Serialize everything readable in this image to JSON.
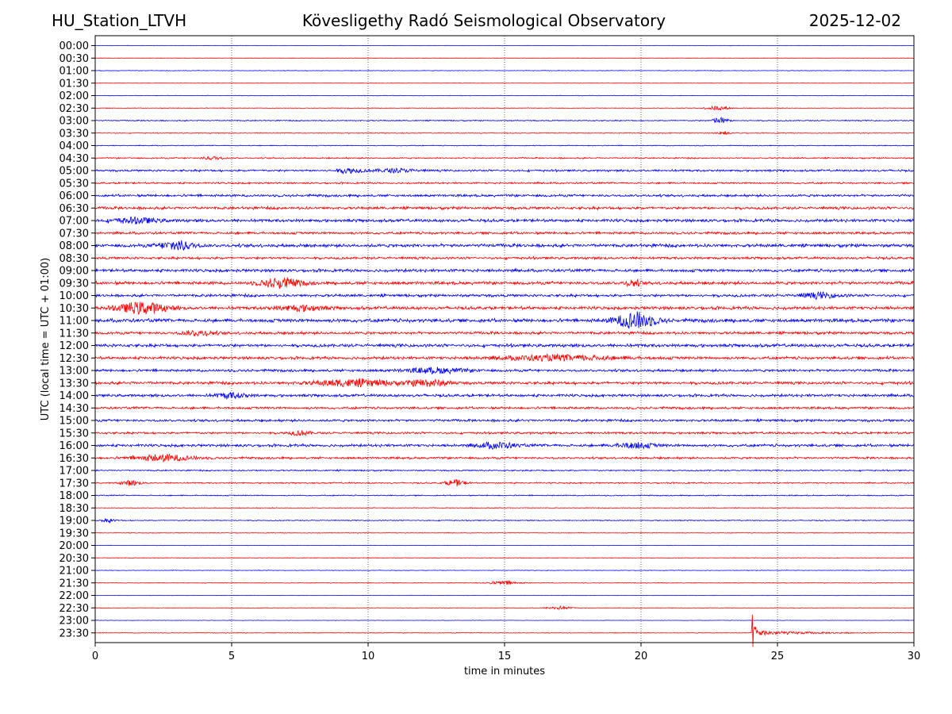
{
  "header": {
    "station": "HU_Station_LTVH",
    "observatory": "Kövesligethy Radó Seismological Observatory",
    "date": "2025-12-02"
  },
  "chart_data": {
    "type": "line",
    "title": "Kövesligethy Radó Seismological Observatory",
    "xlabel": "time in minutes",
    "ylabel": "UTC (local time = UTC + 01:00)",
    "xlim": [
      0,
      30
    ],
    "xticks": [
      "0",
      "5",
      "10",
      "15",
      "20",
      "25",
      "30"
    ],
    "grid": "vertical dotted",
    "series_colors": [
      "#0000ff",
      "#ff0000"
    ],
    "rows": [
      "00:00",
      "00:30",
      "01:00",
      "01:30",
      "02:00",
      "02:30",
      "03:00",
      "03:30",
      "04:00",
      "04:30",
      "05:00",
      "05:30",
      "06:00",
      "06:30",
      "07:00",
      "07:30",
      "08:00",
      "08:30",
      "09:00",
      "09:30",
      "10:00",
      "10:30",
      "11:00",
      "11:30",
      "12:00",
      "12:30",
      "13:00",
      "13:30",
      "14:00",
      "14:30",
      "15:00",
      "15:30",
      "16:00",
      "16:30",
      "17:00",
      "17:30",
      "18:00",
      "18:30",
      "19:00",
      "19:30",
      "20:00",
      "20:30",
      "21:00",
      "21:30",
      "22:00",
      "22:30",
      "23:00",
      "23:30"
    ],
    "noise_level": [
      0.3,
      0.3,
      0.4,
      0.3,
      0.4,
      0.5,
      0.8,
      0.6,
      0.6,
      1.0,
      1.5,
      1.3,
      1.8,
      2.0,
      2.2,
      1.8,
      2.4,
      1.8,
      2.2,
      2.3,
      2.0,
      2.3,
      2.6,
      2.0,
      2.3,
      2.1,
      1.9,
      2.1,
      2.0,
      1.7,
      1.8,
      1.6,
      2.0,
      1.6,
      1.0,
      1.0,
      0.8,
      0.6,
      0.7,
      0.5,
      0.3,
      0.5,
      0.4,
      0.5,
      0.3,
      0.4,
      0.3,
      0.5
    ],
    "events": [
      {
        "row": "02:30",
        "minute": 22.8,
        "amp": 2.5,
        "width": 0.6
      },
      {
        "row": "03:00",
        "minute": 22.9,
        "amp": 4,
        "width": 0.4
      },
      {
        "row": "03:30",
        "minute": 23.0,
        "amp": 2,
        "width": 0.3
      },
      {
        "row": "04:30",
        "minute": 4.3,
        "amp": 2,
        "width": 0.5
      },
      {
        "row": "05:00",
        "minute": 9.3,
        "amp": 3,
        "width": 0.6
      },
      {
        "row": "05:00",
        "minute": 11.0,
        "amp": 2,
        "width": 1.2
      },
      {
        "row": "07:00",
        "minute": 1.5,
        "amp": 3,
        "width": 1.2
      },
      {
        "row": "08:00",
        "minute": 3.0,
        "amp": 6,
        "width": 0.8
      },
      {
        "row": "09:30",
        "minute": 6.8,
        "amp": 6,
        "width": 1.0
      },
      {
        "row": "09:30",
        "minute": 19.7,
        "amp": 4,
        "width": 0.4
      },
      {
        "row": "10:00",
        "minute": 26.5,
        "amp": 3,
        "width": 1.0
      },
      {
        "row": "10:30",
        "minute": 1.7,
        "amp": 7,
        "width": 1.2
      },
      {
        "row": "10:30",
        "minute": 7.5,
        "amp": 3,
        "width": 1.2
      },
      {
        "row": "11:00",
        "minute": 19.8,
        "amp": 10,
        "width": 1.0
      },
      {
        "row": "11:30",
        "minute": 3.8,
        "amp": 3,
        "width": 0.8
      },
      {
        "row": "12:30",
        "minute": 17.0,
        "amp": 3,
        "width": 3.0
      },
      {
        "row": "13:00",
        "minute": 12.5,
        "amp": 3,
        "width": 1.5
      },
      {
        "row": "13:30",
        "minute": 9.5,
        "amp": 4,
        "width": 2.0
      },
      {
        "row": "13:30",
        "minute": 12.2,
        "amp": 4,
        "width": 1.0
      },
      {
        "row": "14:00",
        "minute": 5.0,
        "amp": 3,
        "width": 0.8
      },
      {
        "row": "15:30",
        "minute": 7.5,
        "amp": 2.5,
        "width": 0.6
      },
      {
        "row": "16:00",
        "minute": 14.7,
        "amp": 3.5,
        "width": 1.0
      },
      {
        "row": "16:00",
        "minute": 19.8,
        "amp": 3,
        "width": 1.0
      },
      {
        "row": "16:30",
        "minute": 2.5,
        "amp": 4,
        "width": 1.5
      },
      {
        "row": "17:30",
        "minute": 1.3,
        "amp": 3,
        "width": 0.5
      },
      {
        "row": "17:30",
        "minute": 13.2,
        "amp": 4,
        "width": 0.5
      },
      {
        "row": "19:00",
        "minute": 0.5,
        "amp": 2,
        "width": 0.4
      },
      {
        "row": "21:30",
        "minute": 15.0,
        "amp": 2.5,
        "width": 0.8
      },
      {
        "row": "22:30",
        "minute": 17.0,
        "amp": 2,
        "width": 0.6
      }
    ],
    "earthquake": {
      "row": "23:30",
      "onset_minute": 24.05,
      "peak_amp": 30,
      "coda_end_minute": 27.0
    }
  }
}
